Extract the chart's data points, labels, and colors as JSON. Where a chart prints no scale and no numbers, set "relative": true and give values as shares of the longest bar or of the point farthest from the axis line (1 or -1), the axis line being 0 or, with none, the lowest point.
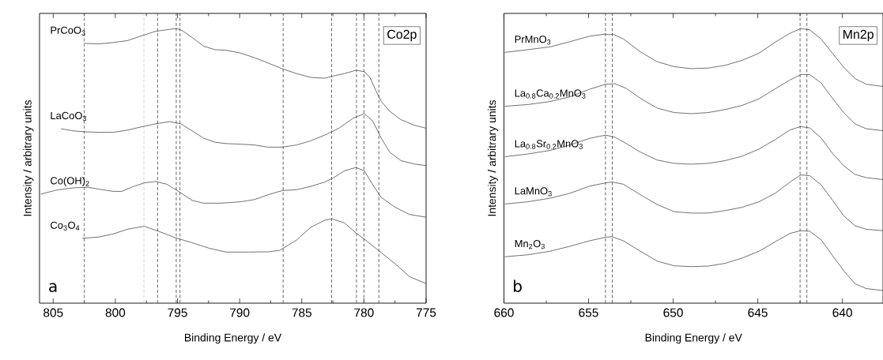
{
  "chart_data": [
    {
      "type": "line",
      "xlabel": "Binding Energy / eV",
      "ylabel": "Intensity / arbitrary units",
      "relative": true,
      "xlim": [
        806.1,
        775
      ],
      "xticks": [
        805,
        800,
        795,
        790,
        785,
        780,
        775
      ],
      "series": [
        {
          "name": "PrCoO$_{3}$",
          "color": "#333333",
          "x": [
            802.48,
            801.3,
            800.17,
            799.03,
            797.9,
            796.76,
            795.63,
            795.06,
            794.61,
            793.81,
            792.91,
            791.99,
            791.09,
            789.96,
            788.82,
            787.69,
            786.55,
            785.42,
            784.28,
            783.15,
            782.47,
            781.56,
            780.65,
            779.97,
            779.52,
            779.06,
            778.61,
            777.93,
            777.02,
            775.89,
            775.0
          ],
          "values": [
            0.946,
            0.944,
            0.949,
            0.956,
            0.973,
            0.99,
            0.997,
            1.0,
            0.992,
            0.967,
            0.936,
            0.923,
            0.921,
            0.911,
            0.894,
            0.874,
            0.853,
            0.836,
            0.822,
            0.819,
            0.827,
            0.836,
            0.848,
            0.843,
            0.822,
            0.776,
            0.735,
            0.699,
            0.668,
            0.647,
            0.637
          ]
        },
        {
          "name": "LaCoO$_{3}$",
          "color": "#333333",
          "x": [
            804.36,
            803.34,
            802.44,
            801.3,
            800.17,
            799.03,
            797.9,
            796.76,
            795.63,
            794.72,
            793.81,
            792.91,
            791.99,
            791.09,
            789.96,
            788.82,
            787.69,
            786.55,
            785.42,
            784.28,
            783.15,
            782.01,
            780.88,
            779.97,
            779.29,
            778.61,
            777.93,
            777.02,
            775.89,
            775.0
          ],
          "values": [
            0.635,
            0.627,
            0.624,
            0.622,
            0.622,
            0.63,
            0.642,
            0.653,
            0.661,
            0.653,
            0.627,
            0.601,
            0.586,
            0.581,
            0.579,
            0.576,
            0.568,
            0.568,
            0.576,
            0.591,
            0.612,
            0.637,
            0.673,
            0.69,
            0.663,
            0.601,
            0.55,
            0.519,
            0.506,
            0.501
          ]
        },
        {
          "name": "Co(OH)$_{2}$",
          "color": "#333333",
          "x": [
            806.0,
            804.71,
            803.34,
            802.21,
            801.3,
            800.17,
            799.49,
            798.58,
            797.67,
            796.76,
            795.86,
            794.95,
            793.81,
            792.91,
            791.54,
            789.96,
            788.82,
            787.69,
            786.55,
            785.42,
            784.28,
            783.15,
            782.47,
            781.56,
            780.65,
            779.97,
            779.29,
            778.61,
            777.48,
            776.34,
            775.0
          ],
          "values": [
            0.397,
            0.412,
            0.42,
            0.422,
            0.415,
            0.407,
            0.407,
            0.424,
            0.438,
            0.443,
            0.433,
            0.408,
            0.374,
            0.364,
            0.364,
            0.369,
            0.377,
            0.395,
            0.41,
            0.413,
            0.425,
            0.441,
            0.456,
            0.482,
            0.494,
            0.482,
            0.431,
            0.385,
            0.349,
            0.323,
            0.313
          ]
        },
        {
          "name": "Co$_{3}$O$_{4}$",
          "color": "#333333",
          "x": [
            802.66,
            801.3,
            800.17,
            799.03,
            797.67,
            796.54,
            795.17,
            793.81,
            792.45,
            791.09,
            789.28,
            787.69,
            786.78,
            785.42,
            784.28,
            783.15,
            782.56,
            781.56,
            780.65,
            779.74,
            778.61,
            777.48,
            776.34,
            775.0
          ],
          "values": [
            0.236,
            0.241,
            0.252,
            0.269,
            0.28,
            0.262,
            0.238,
            0.22,
            0.2,
            0.186,
            0.186,
            0.187,
            0.192,
            0.23,
            0.276,
            0.302,
            0.307,
            0.292,
            0.256,
            0.225,
            0.184,
            0.143,
            0.097,
            0.071
          ]
        }
      ],
      "ref_lines": [
        {
          "axis": "x",
          "value": 802.5,
          "color": "#444444",
          "line_style": "dashed"
        },
        {
          "axis": "x",
          "value": 797.7,
          "color": "#c8c8c8",
          "line_style": "dashed"
        },
        {
          "axis": "x",
          "value": 796.6,
          "color": "#444444",
          "line_style": "dashed"
        },
        {
          "axis": "x",
          "value": 795.1,
          "color": "#444444",
          "line_style": "dashed"
        },
        {
          "axis": "x",
          "value": 794.8,
          "color": "#444444",
          "line_style": "dashed"
        },
        {
          "axis": "x",
          "value": 786.5,
          "color": "#444444",
          "line_style": "dashed"
        },
        {
          "axis": "x",
          "value": 782.6,
          "color": "#444444",
          "line_style": "dashed"
        },
        {
          "axis": "x",
          "value": 780.6,
          "color": "#444444",
          "line_style": "dashed"
        },
        {
          "axis": "x",
          "value": 780.0,
          "color": "#444444",
          "line_style": "dashed"
        },
        {
          "axis": "x",
          "value": 778.8,
          "color": "#444444",
          "line_style": "dashed"
        }
      ],
      "annotations": [
        "Co2p",
        "a"
      ]
    },
    {
      "type": "line",
      "xlabel": "Binding Energy / eV",
      "ylabel": "Intensity / arbitrary units",
      "relative": true,
      "xlim": [
        660,
        637.6
      ],
      "xticks": [
        660,
        655,
        650,
        645,
        640
      ],
      "series": [
        {
          "name": "PrMnO$_{3}$",
          "color": "#333333",
          "x": [
            659.95,
            658.61,
            657.28,
            656.11,
            654.94,
            653.99,
            653.78,
            653.57,
            652.94,
            651.94,
            650.94,
            649.94,
            648.94,
            647.93,
            646.93,
            645.93,
            644.93,
            643.93,
            643.09,
            642.46,
            641.93,
            641.26,
            640.59,
            639.92,
            639.26,
            638.59,
            637.6
          ],
          "values": [
            0.913,
            0.923,
            0.933,
            0.952,
            0.972,
            0.98,
            0.977,
            0.98,
            0.962,
            0.915,
            0.879,
            0.861,
            0.854,
            0.856,
            0.866,
            0.884,
            0.91,
            0.952,
            0.983,
            1.0,
            0.995,
            0.962,
            0.91,
            0.859,
            0.818,
            0.797,
            0.789
          ]
        },
        {
          "name": "La$_{0.8}$Ca$_{0.2}$MnO$_{3}$",
          "color": "#333333",
          "x": [
            659.95,
            658.61,
            657.28,
            656.11,
            654.94,
            653.99,
            653.44,
            652.77,
            651.94,
            650.94,
            649.94,
            648.94,
            647.93,
            646.93,
            645.93,
            644.93,
            643.93,
            643.09,
            642.46,
            641.93,
            641.26,
            640.59,
            639.92,
            639.26,
            638.59,
            637.6
          ],
          "values": [
            0.717,
            0.723,
            0.734,
            0.751,
            0.779,
            0.797,
            0.799,
            0.782,
            0.746,
            0.71,
            0.694,
            0.69,
            0.694,
            0.705,
            0.72,
            0.744,
            0.782,
            0.813,
            0.832,
            0.832,
            0.802,
            0.746,
            0.694,
            0.653,
            0.635,
            0.628
          ]
        },
        {
          "name": "La$_{0.8}$Sr$_{0.2}$MnO$_{3}$",
          "color": "#333333",
          "x": [
            659.95,
            658.61,
            657.28,
            656.11,
            654.94,
            653.99,
            653.44,
            652.77,
            651.94,
            650.94,
            649.94,
            648.94,
            647.93,
            646.93,
            645.93,
            644.93,
            643.93,
            643.09,
            642.46,
            641.93,
            641.26,
            640.59,
            639.92,
            639.26,
            638.59,
            637.6
          ],
          "values": [
            0.533,
            0.543,
            0.556,
            0.576,
            0.6,
            0.612,
            0.604,
            0.581,
            0.55,
            0.521,
            0.509,
            0.506,
            0.509,
            0.519,
            0.535,
            0.561,
            0.597,
            0.631,
            0.643,
            0.638,
            0.602,
            0.546,
            0.5,
            0.469,
            0.457,
            0.45
          ]
        },
        {
          "name": "LaMnO$_{3}$",
          "color": "#333333",
          "x": [
            659.95,
            658.61,
            657.28,
            656.11,
            654.94,
            653.99,
            653.61,
            652.94,
            651.94,
            650.94,
            649.94,
            648.94,
            647.93,
            646.93,
            645.93,
            644.93,
            643.93,
            643.09,
            642.46,
            641.93,
            641.26,
            640.59,
            639.92,
            639.26,
            638.59,
            637.6
          ],
          "values": [
            0.361,
            0.369,
            0.382,
            0.4,
            0.426,
            0.438,
            0.441,
            0.433,
            0.395,
            0.359,
            0.333,
            0.328,
            0.328,
            0.337,
            0.349,
            0.369,
            0.402,
            0.441,
            0.467,
            0.464,
            0.431,
            0.375,
            0.318,
            0.282,
            0.269,
            0.264
          ]
        },
        {
          "name": "Mn$_{2}$O$_{3}$",
          "color": "#333333",
          "x": [
            659.95,
            658.61,
            657.28,
            656.11,
            654.94,
            653.99,
            653.61,
            652.94,
            651.94,
            650.94,
            649.94,
            648.94,
            647.93,
            646.93,
            645.93,
            644.93,
            643.93,
            643.09,
            642.46,
            641.93,
            641.26,
            640.59,
            639.92,
            639.26,
            638.59,
            637.6
          ],
          "values": [
            0.169,
            0.176,
            0.189,
            0.207,
            0.227,
            0.24,
            0.242,
            0.227,
            0.189,
            0.153,
            0.136,
            0.133,
            0.135,
            0.145,
            0.164,
            0.189,
            0.225,
            0.254,
            0.264,
            0.262,
            0.231,
            0.174,
            0.118,
            0.071,
            0.053,
            0.046
          ]
        }
      ],
      "ref_lines": [
        {
          "axis": "x",
          "value": 654.0,
          "color": "#444444",
          "line_style": "dashed"
        },
        {
          "axis": "x",
          "value": 653.6,
          "color": "#444444",
          "line_style": "dashed"
        },
        {
          "axis": "x",
          "value": 642.5,
          "color": "#444444",
          "line_style": "dashed"
        },
        {
          "axis": "x",
          "value": 642.1,
          "color": "#444444",
          "line_style": "dashed"
        }
      ],
      "annotations": [
        "Mn2p",
        "b"
      ]
    }
  ]
}
